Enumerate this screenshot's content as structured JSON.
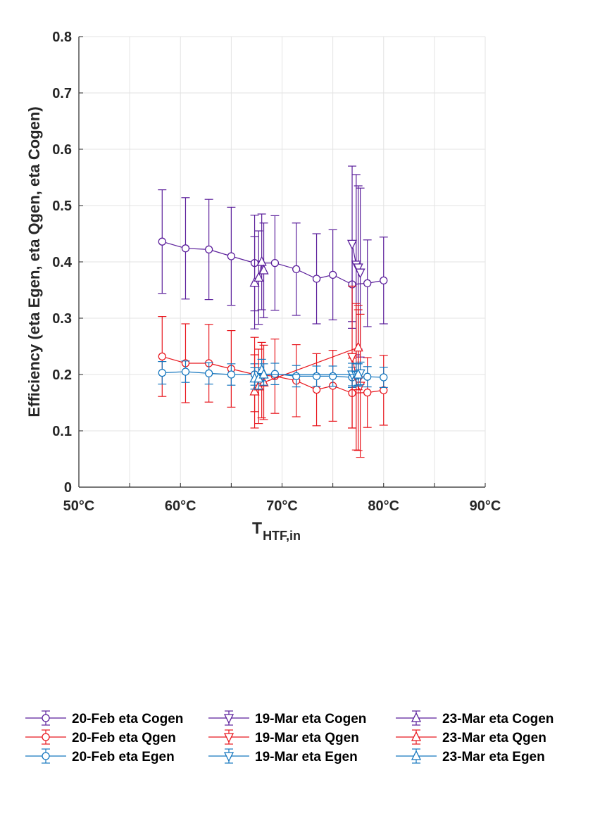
{
  "chart_data": {
    "type": "scatter",
    "title": "",
    "ylabel": "Efficiency (eta Egen, eta Qgen, eta Cogen)",
    "xlabel": {
      "main": "T",
      "sub": "HTF,in"
    },
    "xlim": [
      50,
      90
    ],
    "ylim": [
      0,
      0.8
    ],
    "x_ticks": [
      50,
      60,
      70,
      80,
      90
    ],
    "x_tick_labels": [
      "50°C",
      "60°C",
      "70°C",
      "80°C",
      "90°C"
    ],
    "y_ticks": [
      0,
      0.1,
      0.2,
      0.3,
      0.4,
      0.5,
      0.6,
      0.7,
      0.8
    ],
    "y_tick_labels": [
      "0",
      "0.1",
      "0.2",
      "0.3",
      "0.4",
      "0.5",
      "0.6",
      "0.7",
      "0.8"
    ],
    "grid": true,
    "legend_position": "bottom",
    "colors": {
      "cogen": "#5b1f9b",
      "qgen": "#e8171e",
      "egen": "#1677bf",
      "grid": "#e3e3e3",
      "axis": "#262626"
    },
    "series": [
      {
        "name": "20-Feb eta Cogen",
        "color": "#5b1f9b",
        "marker": "circle",
        "x": [
          58.2,
          60.5,
          62.8,
          65.0,
          67.3,
          69.3,
          71.4,
          73.4,
          75.0,
          76.9,
          78.4,
          80.0
        ],
        "y": [
          0.436,
          0.424,
          0.422,
          0.41,
          0.398,
          0.398,
          0.387,
          0.37,
          0.377,
          0.36,
          0.362,
          0.367
        ],
        "err": [
          0.092,
          0.09,
          0.089,
          0.087,
          0.085,
          0.084,
          0.082,
          0.08,
          0.08,
          0.078,
          0.077,
          0.077
        ]
      },
      {
        "name": "20-Feb eta Qgen",
        "color": "#e8171e",
        "marker": "circle",
        "x": [
          58.2,
          60.5,
          62.8,
          65.0,
          67.3,
          69.3,
          71.4,
          73.4,
          75.0,
          76.9,
          78.4,
          80.0
        ],
        "y": [
          0.232,
          0.22,
          0.22,
          0.21,
          0.2,
          0.197,
          0.189,
          0.173,
          0.18,
          0.167,
          0.168,
          0.172
        ],
        "err": [
          0.071,
          0.07,
          0.069,
          0.068,
          0.066,
          0.066,
          0.064,
          0.064,
          0.063,
          0.062,
          0.062,
          0.062
        ]
      },
      {
        "name": "20-Feb eta Egen",
        "color": "#1677bf",
        "marker": "circle",
        "x": [
          58.2,
          60.5,
          62.8,
          65.0,
          67.3,
          69.3,
          71.4,
          73.4,
          75.0,
          76.9,
          78.4,
          80.0
        ],
        "y": [
          0.203,
          0.205,
          0.202,
          0.2,
          0.2,
          0.201,
          0.197,
          0.197,
          0.197,
          0.195,
          0.196,
          0.195
        ],
        "err": [
          0.02,
          0.019,
          0.019,
          0.019,
          0.019,
          0.019,
          0.019,
          0.018,
          0.018,
          0.018,
          0.018,
          0.018
        ]
      },
      {
        "name": "19-Mar eta Cogen",
        "color": "#5b1f9b",
        "marker": "triangle-down",
        "x": [
          76.9,
          77.3,
          77.5,
          77.7
        ],
        "y": [
          0.432,
          0.395,
          0.39,
          0.381
        ],
        "err": [
          0.138,
          0.16,
          0.145,
          0.15
        ]
      },
      {
        "name": "19-Mar eta Qgen",
        "color": "#e8171e",
        "marker": "triangle-down",
        "x": [
          76.9,
          77.3,
          77.5,
          77.7
        ],
        "y": [
          0.231,
          0.196,
          0.19,
          0.18
        ],
        "err": [
          0.126,
          0.13,
          0.125,
          0.127
        ]
      },
      {
        "name": "19-Mar eta Egen",
        "color": "#1677bf",
        "marker": "triangle-down",
        "x": [
          76.9,
          77.3,
          77.5,
          77.7
        ],
        "y": [
          0.2,
          0.199,
          0.199,
          0.202
        ],
        "err": [
          0.02,
          0.02,
          0.02,
          0.02
        ]
      },
      {
        "name": "23-Mar eta Cogen",
        "color": "#5b1f9b",
        "marker": "triangle-up",
        "x": [
          67.3,
          67.7,
          68.0,
          68.2
        ],
        "y": [
          0.363,
          0.372,
          0.4,
          0.385
        ],
        "err": [
          0.082,
          0.083,
          0.085,
          0.084
        ]
      },
      {
        "name": "23-Mar eta Qgen",
        "color": "#e8171e",
        "marker": "triangle-up",
        "x": [
          67.3,
          67.7,
          68.0,
          68.2,
          77.5
        ],
        "y": [
          0.17,
          0.179,
          0.19,
          0.186,
          0.248
        ],
        "err": [
          0.065,
          0.066,
          0.067,
          0.066,
          0.075
        ]
      },
      {
        "name": "23-Mar eta Egen",
        "color": "#1677bf",
        "marker": "triangle-up",
        "x": [
          67.3,
          67.7,
          68.0,
          68.2,
          77.5
        ],
        "y": [
          0.193,
          0.193,
          0.208,
          0.2,
          0.2
        ],
        "err": [
          0.019,
          0.019,
          0.019,
          0.019,
          0.019
        ]
      }
    ]
  }
}
